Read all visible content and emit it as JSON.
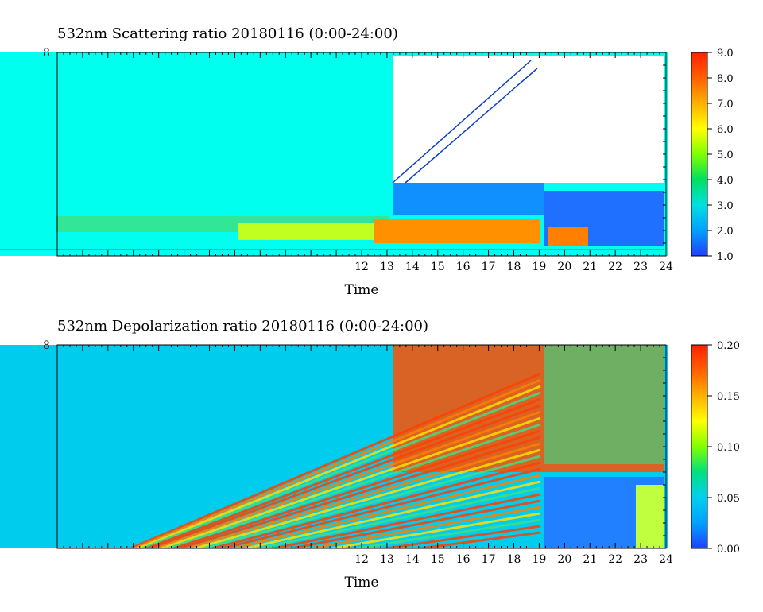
{
  "chart_data": [
    {
      "type": "heatmap",
      "title": "532nm Scattering ratio  20180116 (0:00-24:00)",
      "xlabel": "Time",
      "ylabel": "",
      "x_range": [
        0,
        24
      ],
      "x_ticks_labeled": [
        "12",
        "13",
        "14",
        "15",
        "16",
        "17",
        "18",
        "19",
        "20",
        "21",
        "22",
        "23",
        "24"
      ],
      "y_top_label": "8",
      "colorbar": {
        "min": 1.0,
        "max": 9.0,
        "tick_labels": [
          "9.0",
          "8.0",
          "7.0",
          "6.0",
          "5.0",
          "4.0",
          "3.0",
          "2.0",
          "1.0"
        ],
        "colors": [
          "#2040ff",
          "#00a0ff",
          "#00e0e0",
          "#00e060",
          "#80ff00",
          "#ffff00",
          "#ffb000",
          "#ff6000",
          "#ff2000"
        ]
      },
      "background_color": "#00ffee",
      "gap_color": "#ffffff"
    },
    {
      "type": "heatmap",
      "title": "532nm Depolarization ratio  20180116 (0:00-24:00)",
      "xlabel": "Time",
      "ylabel": "",
      "x_range": [
        0,
        24
      ],
      "x_ticks_labeled": [
        "12",
        "13",
        "14",
        "15",
        "16",
        "17",
        "18",
        "19",
        "20",
        "21",
        "22",
        "23",
        "24"
      ],
      "y_top_label": "8",
      "colorbar": {
        "min": 0.0,
        "max": 0.2,
        "tick_labels": [
          "0.20",
          "0.15",
          "0.10",
          "0.05",
          "0.00"
        ],
        "colors": [
          "#2040ff",
          "#00a0ff",
          "#00d0f0",
          "#00e080",
          "#80ff00",
          "#ffff00",
          "#ffb000",
          "#ff6000",
          "#ff2000"
        ]
      },
      "background_color": "#00ccee",
      "noise_color": "#ff4000"
    }
  ]
}
